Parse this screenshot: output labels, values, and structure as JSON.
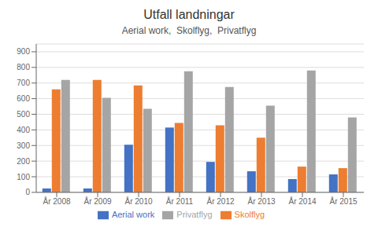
{
  "chart_data": {
    "type": "bar",
    "title": "Utfall landningar",
    "subtitle": "Aerial work,  Skolflyg,  Privatflyg",
    "categories": [
      "År 2008",
      "År 2009",
      "År 2010",
      "År 2011",
      "År 2012",
      "År 2013",
      "År 2014",
      "År 2015"
    ],
    "series": [
      {
        "name": "Aerial work",
        "color": "#4472c4",
        "values": [
          25,
          25,
          305,
          415,
          195,
          135,
          85,
          115
        ]
      },
      {
        "name": "Skolflyg",
        "color": "#ed7d31",
        "values": [
          660,
          720,
          685,
          445,
          430,
          350,
          165,
          155
        ]
      },
      {
        "name": "Privatflyg",
        "color": "#a5a5a5",
        "values": [
          720,
          605,
          535,
          775,
          675,
          555,
          780,
          480
        ]
      }
    ],
    "ylim": [
      0,
      950
    ],
    "yticks": [
      0,
      100,
      200,
      300,
      400,
      500,
      600,
      700,
      800,
      900
    ],
    "grid": true,
    "legend": "bottom"
  }
}
